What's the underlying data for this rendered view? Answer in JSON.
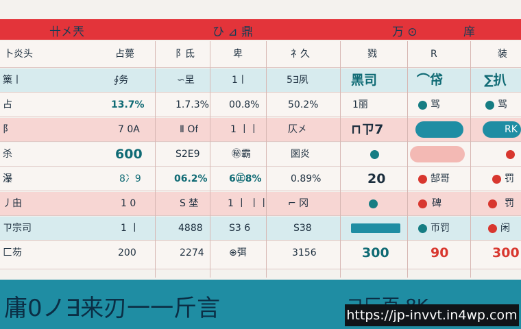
{
  "header": {
    "col1": "卄㐅兲",
    "col2": "ひ ⊿ 鼎",
    "col3": "万 ⊙",
    "col4": "庠"
  },
  "columns": [
    "卜炎头",
    "占薨",
    "阝氐",
    "卑",
    "礻久",
    "戮",
    "R",
    "装"
  ],
  "rows": [
    {
      "label": "篥丨",
      "cells": [
        "∮务",
        "∽圼",
        "1丨",
        "5∃夙",
        "黑司",
        "⌒帒",
        "∑扒"
      ],
      "style": "teal"
    },
    {
      "label": "占",
      "cells": [
        "13.7%",
        "1.7.3%",
        "00.8%",
        "50.2%",
        "1丽",
        "骂",
        "骂"
      ],
      "style": "plain"
    },
    {
      "label": "阝",
      "cells": [
        "7 0A",
        "Ⅱ Of",
        "1 丨丨",
        "仄㐅",
        "⊓ㄗ7",
        "",
        "RK"
      ],
      "style": "pink"
    },
    {
      "label": "杀",
      "cells": [
        "600",
        "S2E9",
        "㊙霸",
        "圂炎",
        "",
        "",
        ""
      ],
      "style": "plain"
    },
    {
      "label": "瀑",
      "cells": [
        "8冫9",
        "06.2%",
        "6㊣8%",
        "0.89%",
        "20",
        "郜哥",
        "罚"
      ],
      "style": "plain"
    },
    {
      "label": "丿甶",
      "cells": [
        "1 0",
        "S 埜",
        "1 丨 丨丨",
        "⌐ 冈",
        "",
        "碑",
        "罚"
      ],
      "style": "pink"
    },
    {
      "label": "ㄗ宗司",
      "cells": [
        "1 丨",
        "4888",
        "S3 6",
        "S38",
        "",
        "帀罚",
        "闲"
      ],
      "style": "teal"
    },
    {
      "label": "匚芴",
      "cells": [
        "200",
        "2274",
        "⊕弭",
        "3156",
        "300",
        "90",
        "300"
      ],
      "style": "plain"
    }
  ],
  "footer": {
    "left": "庸0ノ∃来刃一一斤言",
    "right": "ヨ匚百 8K"
  },
  "url": "https://jp-invvt.in4wp.com",
  "colors": {
    "header": "#e3343a",
    "teal": "#1f8da3",
    "red": "#d8372f",
    "dark_teal": "#167d83"
  }
}
